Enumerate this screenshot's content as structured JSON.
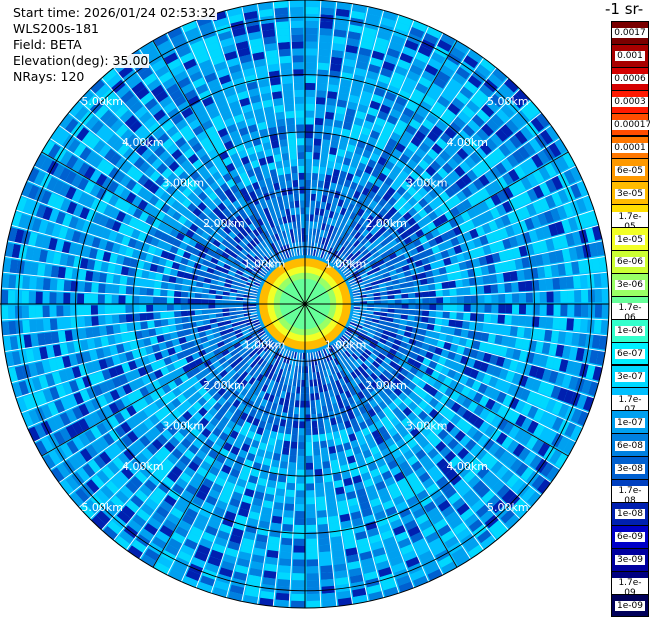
{
  "header": {
    "start_time": "Start time: 2026/01/24 02:53:32",
    "instrument": "WLS200s-181",
    "field": "Field: BETA",
    "elevation": "Elevation(deg): 35.00",
    "nrays": "NRays: 120"
  },
  "colorbar": {
    "title_fragment": "-1 sr-",
    "ticks": [
      "0.0017",
      "0.001",
      "0.0006",
      "0.0003",
      "0.00017",
      "0.0001",
      "6e-05",
      "3e-05",
      "1.7e-05",
      "1e-05",
      "6e-06",
      "3e-06",
      "1.7e-06",
      "1e-06",
      "6e-07",
      "3e-07",
      "1.7e-07",
      "1e-07",
      "6e-08",
      "3e-08",
      "1.7e-08",
      "1e-08",
      "6e-09",
      "3e-09",
      "1.7e-09",
      "1e-09"
    ],
    "colors": [
      "#7a0000",
      "#a80000",
      "#d50000",
      "#ff1a00",
      "#ff4d00",
      "#ff7700",
      "#ff9900",
      "#ffbb00",
      "#ffde00",
      "#f2ff26",
      "#ccff33",
      "#99ff66",
      "#66ff99",
      "#33ffcc",
      "#00f0ff",
      "#00d8ff",
      "#00c0ff",
      "#00a0f0",
      "#0080e0",
      "#0060d0",
      "#0040c0",
      "#0020b0",
      "#0000c8",
      "#0000a0",
      "#000080",
      "#00005a"
    ]
  },
  "range_labels": [
    "1.00km",
    "2.00km",
    "3.00km",
    "4.00km",
    "5.00km"
  ],
  "chart_data": {
    "type": "heatmap",
    "plot": "PPI (plan position indicator)",
    "field": "BETA",
    "elevation_deg": 35.0,
    "n_rays": 120,
    "range_rings_km": [
      1,
      2,
      3,
      4,
      5
    ],
    "max_range_km": 5.3,
    "color_scale": "log",
    "value_range": [
      1e-09,
      0.0017
    ],
    "core_radius_km": 0.8,
    "typical_values": {
      "core_center": 1e-05,
      "core_edge": 3e-05,
      "near_field_1_2km": 1e-07,
      "far_field": 1.7e-07,
      "sparse_streaks": 1e-08
    }
  }
}
